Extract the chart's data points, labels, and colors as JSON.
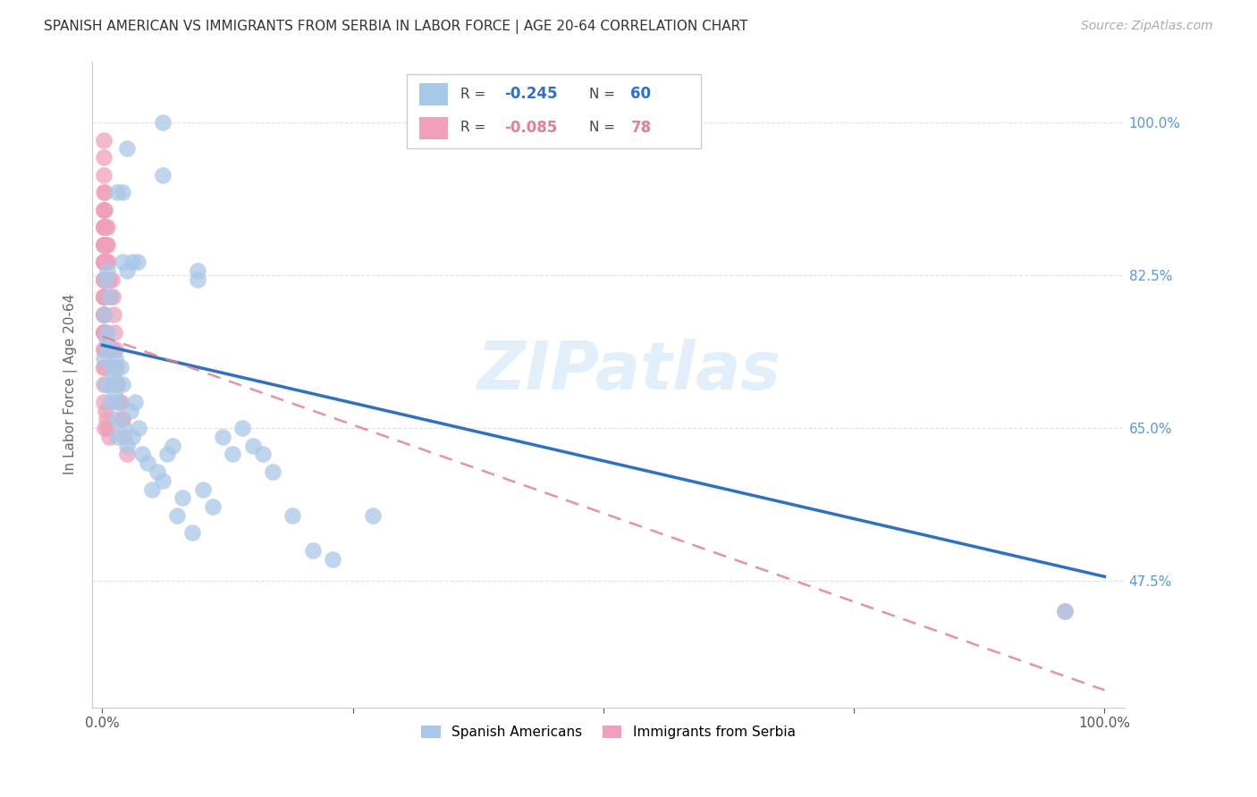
{
  "title": "SPANISH AMERICAN VS IMMIGRANTS FROM SERBIA IN LABOR FORCE | AGE 20-64 CORRELATION CHART",
  "source": "Source: ZipAtlas.com",
  "ylabel": "In Labor Force | Age 20-64",
  "watermark": "ZIPatlas",
  "legend_blue_r": "-0.245",
  "legend_blue_n": "60",
  "legend_pink_r": "-0.085",
  "legend_pink_n": "78",
  "blue_color": "#a8c8e8",
  "pink_color": "#f0a0b8",
  "blue_line_color": "#3070c0",
  "pink_line_color": "#e08090",
  "grid_color": "#e0e0e0",
  "background_color": "#ffffff",
  "blue_scatter_x": [
    0.001,
    0.002,
    0.003,
    0.003,
    0.004,
    0.005,
    0.005,
    0.006,
    0.007,
    0.008,
    0.009,
    0.01,
    0.011,
    0.012,
    0.013,
    0.014,
    0.015,
    0.016,
    0.018,
    0.02,
    0.022,
    0.025,
    0.028,
    0.03,
    0.033,
    0.036,
    0.04,
    0.045,
    0.05,
    0.055,
    0.06,
    0.065,
    0.07,
    0.075,
    0.08,
    0.09,
    0.1,
    0.11,
    0.12,
    0.13,
    0.14,
    0.15,
    0.16,
    0.17,
    0.19,
    0.21,
    0.23,
    0.27,
    0.02,
    0.025,
    0.03,
    0.035,
    0.06,
    0.06,
    0.095,
    0.095,
    0.015,
    0.02,
    0.025,
    0.96
  ],
  "blue_scatter_y": [
    0.73,
    0.78,
    0.82,
    0.7,
    0.75,
    0.83,
    0.76,
    0.74,
    0.8,
    0.68,
    0.72,
    0.7,
    0.71,
    0.69,
    0.73,
    0.66,
    0.64,
    0.68,
    0.72,
    0.7,
    0.65,
    0.63,
    0.67,
    0.64,
    0.68,
    0.65,
    0.62,
    0.61,
    0.58,
    0.6,
    0.59,
    0.62,
    0.63,
    0.55,
    0.57,
    0.53,
    0.58,
    0.56,
    0.64,
    0.62,
    0.65,
    0.63,
    0.62,
    0.6,
    0.55,
    0.51,
    0.5,
    0.55,
    0.84,
    0.83,
    0.84,
    0.84,
    1.0,
    0.94,
    0.82,
    0.83,
    0.92,
    0.92,
    0.97,
    0.44
  ],
  "pink_scatter_x": [
    0.001,
    0.001,
    0.001,
    0.001,
    0.001,
    0.001,
    0.001,
    0.001,
    0.001,
    0.001,
    0.001,
    0.001,
    0.001,
    0.001,
    0.001,
    0.001,
    0.001,
    0.001,
    0.001,
    0.001,
    0.001,
    0.001,
    0.001,
    0.001,
    0.001,
    0.001,
    0.001,
    0.001,
    0.001,
    0.001,
    0.001,
    0.001,
    0.001,
    0.001,
    0.001,
    0.001,
    0.001,
    0.001,
    0.001,
    0.002,
    0.002,
    0.002,
    0.002,
    0.002,
    0.002,
    0.003,
    0.003,
    0.003,
    0.003,
    0.004,
    0.004,
    0.005,
    0.005,
    0.006,
    0.007,
    0.008,
    0.009,
    0.01,
    0.011,
    0.012,
    0.013,
    0.014,
    0.015,
    0.017,
    0.019,
    0.022,
    0.025,
    0.01,
    0.012,
    0.015,
    0.018,
    0.02,
    0.002,
    0.003,
    0.004,
    0.005,
    0.007,
    0.96
  ],
  "pink_scatter_y": [
    0.98,
    0.96,
    0.94,
    0.92,
    0.9,
    0.88,
    0.86,
    0.84,
    0.82,
    0.8,
    0.78,
    0.76,
    0.74,
    0.72,
    0.7,
    0.68,
    0.86,
    0.84,
    0.82,
    0.8,
    0.78,
    0.76,
    0.74,
    0.72,
    0.88,
    0.86,
    0.84,
    0.82,
    0.8,
    0.78,
    0.76,
    0.9,
    0.88,
    0.86,
    0.84,
    0.82,
    0.8,
    0.78,
    0.76,
    0.92,
    0.9,
    0.88,
    0.86,
    0.84,
    0.82,
    0.88,
    0.86,
    0.84,
    0.82,
    0.86,
    0.84,
    0.88,
    0.86,
    0.84,
    0.82,
    0.8,
    0.82,
    0.8,
    0.78,
    0.76,
    0.74,
    0.72,
    0.7,
    0.68,
    0.66,
    0.64,
    0.62,
    0.74,
    0.72,
    0.7,
    0.68,
    0.66,
    0.65,
    0.67,
    0.66,
    0.65,
    0.64,
    0.44
  ]
}
